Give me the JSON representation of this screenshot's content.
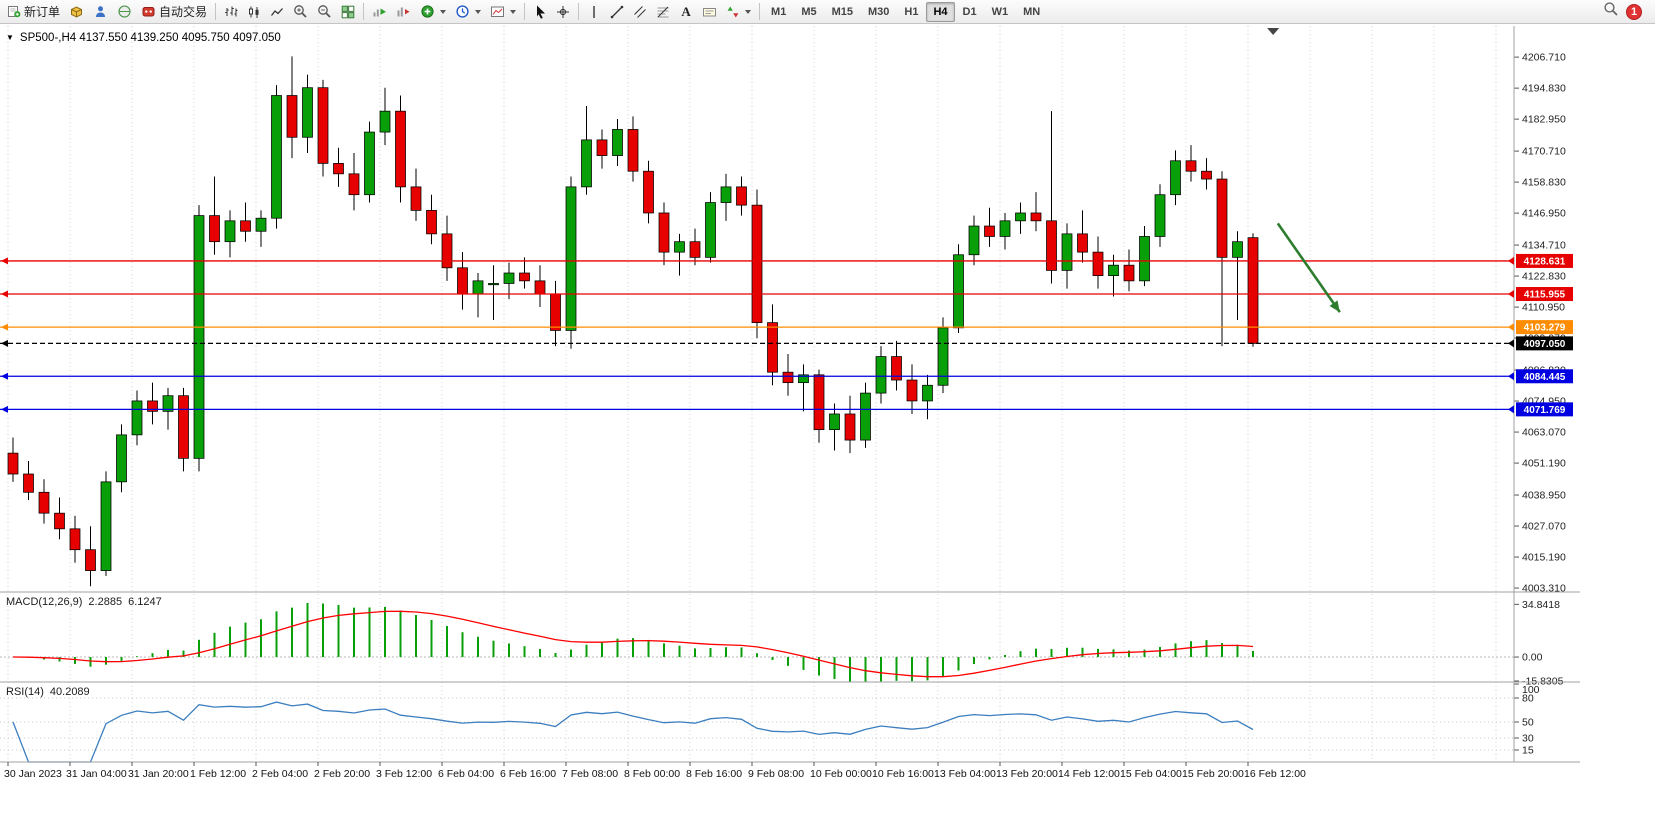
{
  "toolbar": {
    "new_order_label": "新订单",
    "auto_trading_label": "自动交易",
    "text_tool_label": "A",
    "timeframes": [
      "M1",
      "M5",
      "M15",
      "M30",
      "H1",
      "H4",
      "D1",
      "W1",
      "MN"
    ],
    "active_timeframe": "H4",
    "notification_count": "1"
  },
  "chart": {
    "title": "SP500-,H4 4137.550 4139.250 4095.750 4097.050"
  },
  "indicators": {
    "macd_name": "MACD(12,26,9)",
    "macd_value": "2.2885",
    "macd_signal_value": "6.1247",
    "rsi_name": "RSI(14)",
    "rsi_value": "40.2089"
  },
  "chart_data": {
    "type": "candlestick",
    "symbol": "SP500-",
    "timeframe": "H4",
    "x_labels": [
      "30 Jan 2023",
      "31 Jan 04:00",
      "31 Jan 20:00",
      "1 Feb 12:00",
      "2 Feb 04:00",
      "2 Feb 20:00",
      "3 Feb 12:00",
      "6 Feb 04:00",
      "6 Feb 16:00",
      "7 Feb 08:00",
      "8 Feb 00:00",
      "8 Feb 16:00",
      "9 Feb 08:00",
      "10 Feb 00:00",
      "10 Feb 16:00",
      "13 Feb 04:00",
      "13 Feb 20:00",
      "14 Feb 12:00",
      "15 Feb 04:00",
      "15 Feb 20:00",
      "16 Feb 12:00"
    ],
    "ylim": [
      4001.8,
      4217.1
    ],
    "candles": [
      [
        4055,
        4061,
        4044,
        4047
      ],
      [
        4047,
        4052,
        4037,
        4040
      ],
      [
        4040,
        4045,
        4028,
        4032
      ],
      [
        4032,
        4038,
        4022,
        4026
      ],
      [
        4026,
        4031,
        4013,
        4018
      ],
      [
        4018,
        4027,
        4004,
        4010
      ],
      [
        4010,
        4048,
        4008,
        4044
      ],
      [
        4044,
        4066,
        4040,
        4062
      ],
      [
        4062,
        4079,
        4058,
        4075
      ],
      [
        4075,
        4082,
        4066,
        4071
      ],
      [
        4071,
        4080,
        4064,
        4077
      ],
      [
        4077,
        4080,
        4048,
        4053
      ],
      [
        4053,
        4150,
        4048,
        4146
      ],
      [
        4146,
        4161,
        4131,
        4136
      ],
      [
        4136,
        4148,
        4130,
        4144
      ],
      [
        4144,
        4151,
        4136,
        4140
      ],
      [
        4140,
        4148,
        4134,
        4145
      ],
      [
        4145,
        4196,
        4141,
        4192
      ],
      [
        4192,
        4207,
        4168,
        4176
      ],
      [
        4176,
        4200,
        4170,
        4195
      ],
      [
        4195,
        4198,
        4161,
        4166
      ],
      [
        4166,
        4172,
        4157,
        4162
      ],
      [
        4162,
        4170,
        4148,
        4154
      ],
      [
        4154,
        4182,
        4151,
        4178
      ],
      [
        4178,
        4195,
        4173,
        4186
      ],
      [
        4186,
        4192,
        4151,
        4157
      ],
      [
        4157,
        4164,
        4144,
        4148
      ],
      [
        4148,
        4154,
        4135,
        4139
      ],
      [
        4139,
        4146,
        4121,
        4126
      ],
      [
        4126,
        4132,
        4110,
        4116
      ],
      [
        4116,
        4124,
        4107,
        4121
      ],
      [
        4119.5,
        4127,
        4106,
        4120
      ],
      [
        4120,
        4128,
        4114,
        4124
      ],
      [
        4124,
        4130,
        4118,
        4121
      ],
      [
        4121,
        4127,
        4111,
        4116
      ],
      [
        4116,
        4121,
        4096,
        4102
      ],
      [
        4102,
        4161,
        4095,
        4157
      ],
      [
        4157,
        4188,
        4154,
        4175
      ],
      [
        4175,
        4179,
        4164,
        4169
      ],
      [
        4169,
        4183,
        4165,
        4179
      ],
      [
        4179,
        4184,
        4159,
        4163
      ],
      [
        4163,
        4167,
        4143,
        4147
      ],
      [
        4147,
        4151,
        4127,
        4132
      ],
      [
        4132,
        4139,
        4123,
        4136
      ],
      [
        4136,
        4141,
        4127,
        4130
      ],
      [
        4130,
        4155,
        4128,
        4151
      ],
      [
        4151,
        4162,
        4144,
        4157
      ],
      [
        4157,
        4161,
        4146,
        4150
      ],
      [
        4150,
        4156,
        4099,
        4105
      ],
      [
        4105,
        4112,
        4081,
        4086
      ],
      [
        4086,
        4093,
        4077,
        4082
      ],
      [
        4082,
        4089,
        4071,
        4085
      ],
      [
        4085,
        4087,
        4059,
        4064
      ],
      [
        4064,
        4074,
        4056,
        4070
      ],
      [
        4070,
        4077,
        4055,
        4060
      ],
      [
        4060,
        4082,
        4057,
        4078
      ],
      [
        4078,
        4096,
        4074,
        4092
      ],
      [
        4092,
        4098,
        4079,
        4083
      ],
      [
        4083,
        4089,
        4070,
        4075
      ],
      [
        4075,
        4085,
        4068,
        4081
      ],
      [
        4081,
        4107,
        4078,
        4103
      ],
      [
        4103,
        4135,
        4101,
        4131
      ],
      [
        4131,
        4146,
        4127,
        4142
      ],
      [
        4142,
        4149,
        4134,
        4138
      ],
      [
        4138,
        4147,
        4133,
        4144
      ],
      [
        4144,
        4151,
        4139,
        4147
      ],
      [
        4147,
        4155,
        4140,
        4144
      ],
      [
        4144,
        4186,
        4120,
        4125
      ],
      [
        4125,
        4143,
        4118,
        4139
      ],
      [
        4139,
        4148,
        4128,
        4132
      ],
      [
        4132,
        4138,
        4118,
        4123
      ],
      [
        4123,
        4131,
        4115,
        4127
      ],
      [
        4127,
        4133,
        4117,
        4121
      ],
      [
        4121,
        4142,
        4119,
        4138
      ],
      [
        4138,
        4158,
        4134,
        4154
      ],
      [
        4154,
        4171,
        4150,
        4167
      ],
      [
        4167,
        4173,
        4159,
        4163
      ],
      [
        4163,
        4168,
        4156,
        4160
      ],
      [
        4160,
        4163,
        4096,
        4130
      ],
      [
        4130,
        4140,
        4106,
        4136
      ],
      [
        4137.55,
        4139.25,
        4095.75,
        4097.05
      ]
    ],
    "price_scale": [
      {
        "label": "4206.710",
        "value": 4206.71
      },
      {
        "label": "4194.830",
        "value": 4194.83
      },
      {
        "label": "4182.950",
        "value": 4182.95
      },
      {
        "label": "4170.710",
        "value": 4170.71
      },
      {
        "label": "4158.830",
        "value": 4158.83
      },
      {
        "label": "4146.950",
        "value": 4146.95
      },
      {
        "label": "4134.710",
        "value": 4134.71
      },
      {
        "label": "4122.830",
        "value": 4122.83
      },
      {
        "label": "4110.950",
        "value": 4110.95
      },
      {
        "label": "4099.070",
        "value": 4099.07
      },
      {
        "label": "4086.830",
        "value": 4086.83
      },
      {
        "label": "4074.950",
        "value": 4074.95
      },
      {
        "label": "4063.070",
        "value": 4063.07
      },
      {
        "label": "4051.190",
        "value": 4051.19
      },
      {
        "label": "4038.950",
        "value": 4038.95
      },
      {
        "label": "4027.070",
        "value": 4027.07
      },
      {
        "label": "4015.190",
        "value": 4015.19
      },
      {
        "label": "4003.310",
        "value": 4003.31
      }
    ],
    "hlines": [
      {
        "label": "4128.631",
        "value": 4128.631,
        "color": "#e60000",
        "style": "solid"
      },
      {
        "label": "4115.955",
        "value": 4115.955,
        "color": "#e60000",
        "style": "solid"
      },
      {
        "label": "4103.279",
        "value": 4103.279,
        "color": "#ff8c00",
        "style": "solid"
      },
      {
        "label": "4097.050",
        "value": 4097.05,
        "color": "#000000",
        "style": "dashed"
      },
      {
        "label": "4084.445",
        "value": 4084.445,
        "color": "#0000e0",
        "style": "solid"
      },
      {
        "label": "4071.769",
        "value": 4071.769,
        "color": "#0000e0",
        "style": "solid"
      }
    ],
    "macd": {
      "params": "12,26,9",
      "range": [
        -16.5,
        43
      ],
      "scale": [
        {
          "label": "34.8418",
          "value": 34.8418
        },
        {
          "label": "0.00",
          "value": 0
        },
        {
          "label": "-15.8305",
          "value": -15.8305
        }
      ]
    },
    "rsi": {
      "period": 14,
      "range": [
        0,
        100
      ],
      "scale": [
        {
          "label": "100",
          "value": 100
        },
        {
          "label": "80",
          "value": 80
        },
        {
          "label": "50",
          "value": 50
        },
        {
          "label": "30",
          "value": 30
        },
        {
          "label": "15",
          "value": 15
        }
      ]
    },
    "annotations": [
      {
        "type": "arrow",
        "color": "#2e7d2e",
        "from_index": 81.6,
        "from_price": 4143,
        "to_index": 85.6,
        "to_price": 4109
      }
    ],
    "shift_marker_index": 81.3,
    "colors": {
      "up": "#089f08",
      "down": "#e60000",
      "wick": "#000000",
      "macd_hist": "#089f08",
      "macd_signal": "#ff0000",
      "rsi_line": "#3c7ebf",
      "grid": "#d0d0d0"
    }
  }
}
